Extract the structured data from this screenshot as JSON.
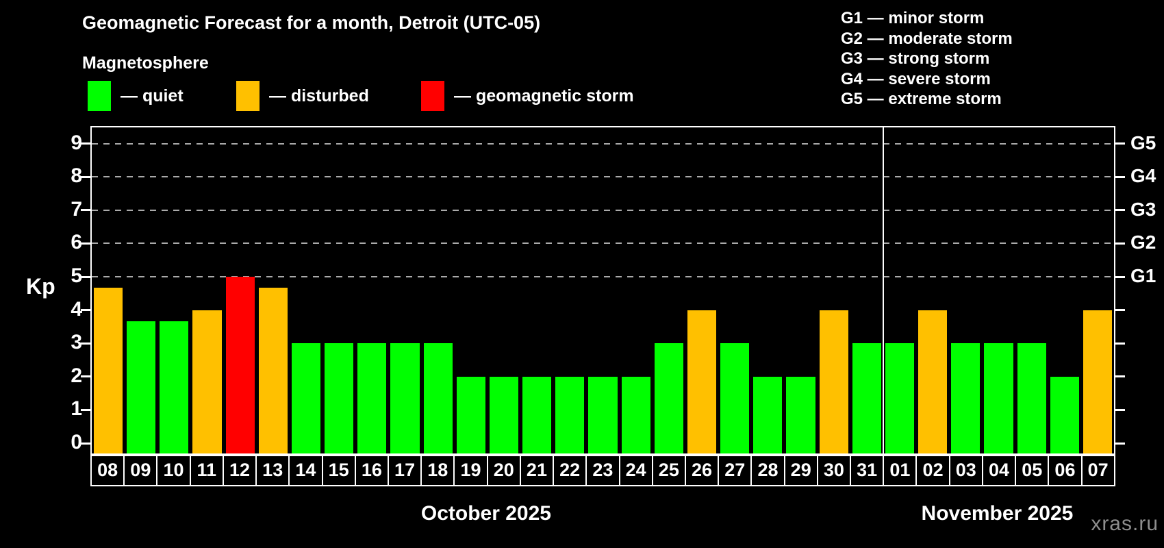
{
  "title": "Geomagnetic Forecast for a month, Detroit (UTC-05)",
  "subtitle": "Magnetosphere",
  "legend": {
    "items": [
      {
        "key": "quiet",
        "label": "— quiet"
      },
      {
        "key": "disturbed",
        "label": "— disturbed"
      },
      {
        "key": "storm",
        "label": "— geomagnetic storm"
      }
    ]
  },
  "storm_scale": {
    "lines": [
      "G1 — minor storm",
      "G2 — moderate storm",
      "G3 — strong storm",
      "G4 — severe storm",
      "G5 — extreme storm"
    ]
  },
  "colors": {
    "quiet": "#00ff00",
    "disturbed": "#ffc000",
    "storm": "#ff0000",
    "axis": "#ffffff",
    "grid": "#aaaaaa",
    "background": "#000000",
    "watermark": "#8e8e8e"
  },
  "watermark": "xras.ru",
  "chart_data": {
    "type": "bar",
    "title": "Geomagnetic Forecast for a month, Detroit (UTC-05)",
    "ylabel": "Kp",
    "ylim": [
      0,
      9
    ],
    "yticks": [
      0,
      1,
      2,
      3,
      4,
      5,
      6,
      7,
      8,
      9
    ],
    "gridlines_at": [
      5,
      6,
      7,
      8,
      9
    ],
    "grid_style": "dashed gray, levels 5-9 only",
    "legend_position": "top-left",
    "right_axis_labels": [
      {
        "value": 5,
        "label": "G1"
      },
      {
        "value": 6,
        "label": "G2"
      },
      {
        "value": 7,
        "label": "G3"
      },
      {
        "value": 8,
        "label": "G4"
      },
      {
        "value": 9,
        "label": "G5"
      }
    ],
    "categories": [
      "08",
      "09",
      "10",
      "11",
      "12",
      "13",
      "14",
      "15",
      "16",
      "17",
      "18",
      "19",
      "20",
      "21",
      "22",
      "23",
      "24",
      "25",
      "26",
      "27",
      "28",
      "29",
      "30",
      "31",
      "01",
      "02",
      "03",
      "04",
      "05",
      "06",
      "07"
    ],
    "values": [
      4.67,
      3.67,
      3.67,
      4,
      5,
      4.67,
      3,
      3,
      3,
      3,
      3,
      2,
      2,
      2,
      2,
      2,
      2,
      3,
      4,
      3,
      2,
      2,
      4,
      3,
      3,
      4,
      3,
      3,
      3,
      2,
      4
    ],
    "statuses": [
      "disturbed",
      "quiet",
      "quiet",
      "disturbed",
      "storm",
      "disturbed",
      "quiet",
      "quiet",
      "quiet",
      "quiet",
      "quiet",
      "quiet",
      "quiet",
      "quiet",
      "quiet",
      "quiet",
      "quiet",
      "quiet",
      "disturbed",
      "quiet",
      "quiet",
      "quiet",
      "disturbed",
      "quiet",
      "quiet",
      "disturbed",
      "quiet",
      "quiet",
      "quiet",
      "quiet",
      "disturbed"
    ],
    "months": [
      {
        "label": "October 2025",
        "days": 24
      },
      {
        "label": "November 2025",
        "days": 7
      }
    ]
  }
}
